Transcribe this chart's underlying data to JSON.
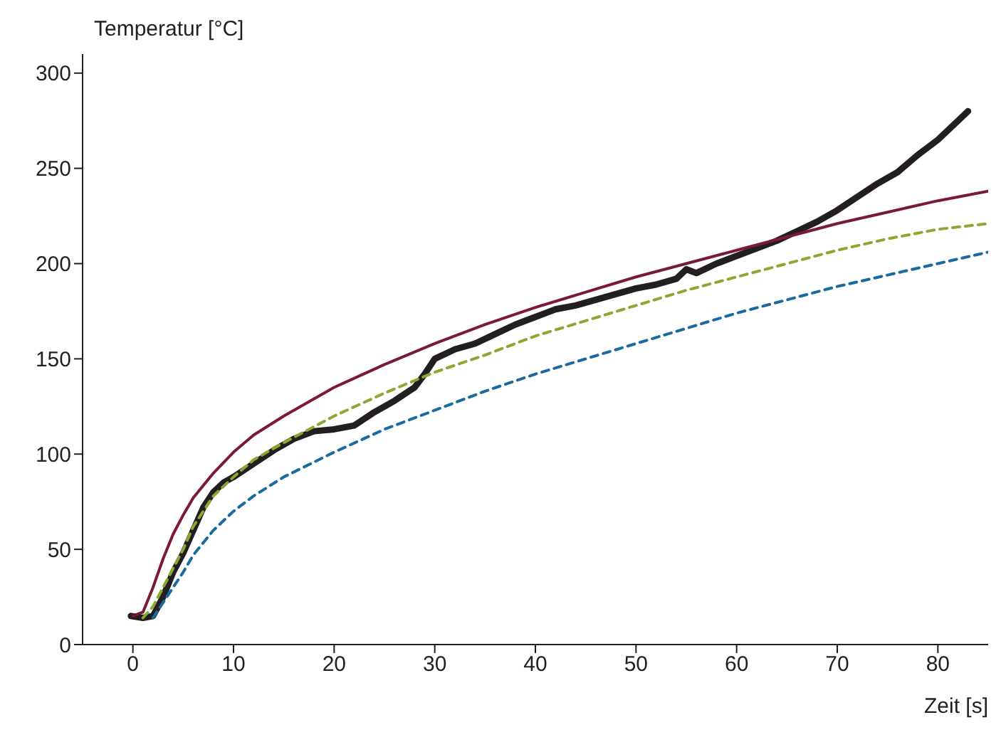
{
  "chart_data": {
    "type": "line",
    "xlabel": "Zeit [s]",
    "ylabel": "Temperatur [°C]",
    "xlim": [
      -5,
      85
    ],
    "xticks": [
      0,
      10,
      20,
      30,
      40,
      50,
      60,
      70,
      80
    ],
    "ylim": [
      0,
      310
    ],
    "yticks": [
      0,
      50,
      100,
      150,
      200,
      250,
      300
    ],
    "grid": false,
    "legend": false,
    "series": [
      {
        "color": "#231f20",
        "line_style": "solid",
        "x": [
          -0.2,
          1,
          2,
          3,
          4,
          5,
          6,
          7,
          8,
          9,
          10,
          12,
          14,
          16,
          18,
          20,
          22,
          24,
          26,
          28,
          29,
          30,
          32,
          34,
          36,
          38,
          40,
          42,
          44,
          46,
          48,
          50,
          52,
          54,
          55,
          56,
          58,
          60,
          62,
          64,
          66,
          68,
          70,
          72,
          74,
          76,
          78,
          80,
          82,
          83
        ],
        "values": [
          15,
          14,
          15,
          25,
          38,
          48,
          60,
          72,
          80,
          85,
          88,
          95,
          102,
          108,
          112,
          113,
          115,
          122,
          128,
          135,
          142,
          150,
          155,
          158,
          163,
          168,
          172,
          176,
          178,
          181,
          184,
          187,
          189,
          192,
          197,
          195,
          200,
          204,
          208,
          212,
          217,
          222,
          228,
          235,
          242,
          248,
          257,
          265,
          275,
          280
        ]
      },
      {
        "color": "#7a1a35",
        "line_style": "solid",
        "x": [
          0,
          1,
          2,
          3,
          4,
          5,
          6,
          8,
          10,
          12,
          15,
          20,
          25,
          30,
          35,
          40,
          45,
          50,
          55,
          60,
          65,
          70,
          75,
          80,
          85
        ],
        "values": [
          15,
          17,
          30,
          45,
          58,
          68,
          77,
          90,
          101,
          110,
          120,
          135,
          147,
          158,
          168,
          177,
          185,
          193,
          200,
          207,
          214,
          221,
          227,
          233,
          238
        ]
      },
      {
        "color": "#8aa832",
        "line_style": "dashed",
        "x": [
          1,
          2,
          3,
          4,
          5,
          6,
          8,
          10,
          12,
          15,
          20,
          25,
          30,
          35,
          40,
          45,
          50,
          55,
          60,
          65,
          70,
          75,
          80,
          85
        ],
        "values": [
          14,
          20,
          30,
          40,
          50,
          62,
          78,
          88,
          97,
          106,
          120,
          132,
          143,
          152,
          162,
          170,
          178,
          186,
          193,
          200,
          207,
          213,
          218,
          221
        ]
      },
      {
        "color": "#1a6aa0",
        "line_style": "dashed",
        "x": [
          2,
          3,
          4,
          5,
          6,
          8,
          10,
          12,
          15,
          20,
          25,
          30,
          35,
          40,
          45,
          50,
          55,
          60,
          65,
          70,
          75,
          80,
          85
        ],
        "values": [
          14,
          22,
          30,
          38,
          47,
          60,
          70,
          78,
          88,
          101,
          113,
          123,
          133,
          142,
          150,
          158,
          166,
          174,
          181,
          188,
          194,
          200,
          206
        ]
      }
    ]
  }
}
